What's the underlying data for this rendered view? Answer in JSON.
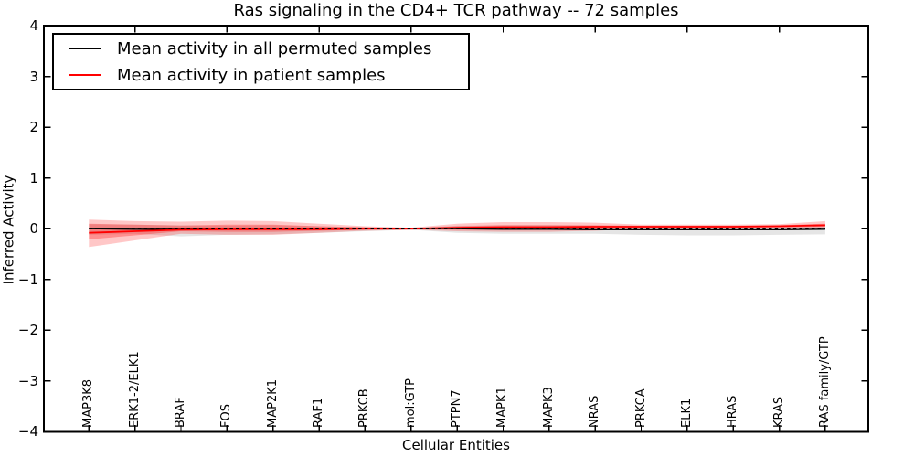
{
  "title": "Ras signaling in the CD4+ TCR pathway -- 72 samples",
  "legend": {
    "items": [
      {
        "label": "Mean activity in all permuted samples",
        "color": "#000000"
      },
      {
        "label": "Mean activity in patient samples",
        "color": "#ff0000"
      }
    ]
  },
  "chart_data": {
    "type": "line",
    "title": "Ras signaling in the CD4+ TCR pathway -- 72 samples",
    "xlabel": "Cellular Entities",
    "ylabel": "Inferred Activity",
    "ylim": [
      -4,
      4
    ],
    "yticks": [
      -4,
      -3,
      -2,
      -1,
      0,
      1,
      2,
      3,
      4
    ],
    "yticklabels": [
      "−4",
      "−3",
      "−2",
      "−1",
      "0",
      "1",
      "2",
      "3",
      "4"
    ],
    "grid": false,
    "legend_position": "upper left",
    "categories": [
      "MAP3K8",
      "ERK1-2/ELK1",
      "BRAF",
      "FOS",
      "MAP2K1",
      "RAF1",
      "PRKCB",
      "mol:GTP",
      "PTPN7",
      "MAPK1",
      "MAPK3",
      "NRAS",
      "PRKCA",
      "ELK1",
      "HRAS",
      "KRAS",
      "RAS family/GTP"
    ],
    "series": [
      {
        "name": "Mean activity in all permuted samples",
        "color": "#000000",
        "style": "solid",
        "values": [
          0.0,
          -0.01,
          -0.01,
          0.0,
          0.0,
          -0.01,
          0.0,
          0.0,
          0.0,
          -0.01,
          -0.01,
          -0.02,
          -0.02,
          -0.02,
          -0.02,
          -0.02,
          -0.01
        ]
      },
      {
        "name": "Mean activity in patient samples",
        "color": "#ff0000",
        "style": "solid",
        "values": [
          -0.08,
          -0.05,
          -0.02,
          -0.01,
          -0.01,
          -0.01,
          0.0,
          0.0,
          0.02,
          0.03,
          0.03,
          0.04,
          0.04,
          0.04,
          0.04,
          0.05,
          0.07
        ]
      }
    ],
    "bands": [
      {
        "name": "permuted-samples-std-band",
        "color": "rgba(0,0,0,0.10)",
        "upper": [
          0.09,
          0.08,
          0.07,
          0.06,
          0.07,
          0.05,
          0.03,
          0.02,
          0.06,
          0.07,
          0.07,
          0.06,
          0.05,
          0.05,
          0.05,
          0.05,
          0.05
        ],
        "lower": [
          -0.12,
          -0.1,
          -0.15,
          -0.12,
          -0.11,
          -0.08,
          -0.05,
          -0.02,
          -0.08,
          -0.1,
          -0.1,
          -0.1,
          -0.12,
          -0.13,
          -0.13,
          -0.12,
          -0.11
        ]
      },
      {
        "name": "patient-samples-outer-band",
        "color": "rgba(255,0,0,0.22)",
        "upper": [
          0.18,
          0.15,
          0.14,
          0.16,
          0.15,
          0.1,
          0.05,
          0.02,
          0.1,
          0.13,
          0.13,
          0.12,
          0.08,
          0.08,
          0.08,
          0.09,
          0.15
        ],
        "lower": [
          -0.36,
          -0.23,
          -0.1,
          -0.12,
          -0.12,
          -0.08,
          -0.04,
          -0.02,
          -0.05,
          -0.06,
          -0.06,
          -0.04,
          0.0,
          0.0,
          0.0,
          0.01,
          0.0
        ]
      },
      {
        "name": "patient-samples-inner-band",
        "color": "rgba(255,0,0,0.28)",
        "upper": [
          0.1,
          0.08,
          0.06,
          0.08,
          0.08,
          0.05,
          0.03,
          0.01,
          0.05,
          0.07,
          0.07,
          0.07,
          0.06,
          0.06,
          0.06,
          0.07,
          0.1
        ],
        "lower": [
          -0.21,
          -0.13,
          -0.05,
          -0.06,
          -0.06,
          -0.04,
          -0.02,
          -0.01,
          -0.02,
          -0.02,
          -0.02,
          -0.01,
          0.02,
          0.02,
          0.02,
          0.03,
          0.04
        ]
      }
    ],
    "zero_line": {
      "y": 0,
      "style": "dashed",
      "color": "#000000"
    }
  }
}
